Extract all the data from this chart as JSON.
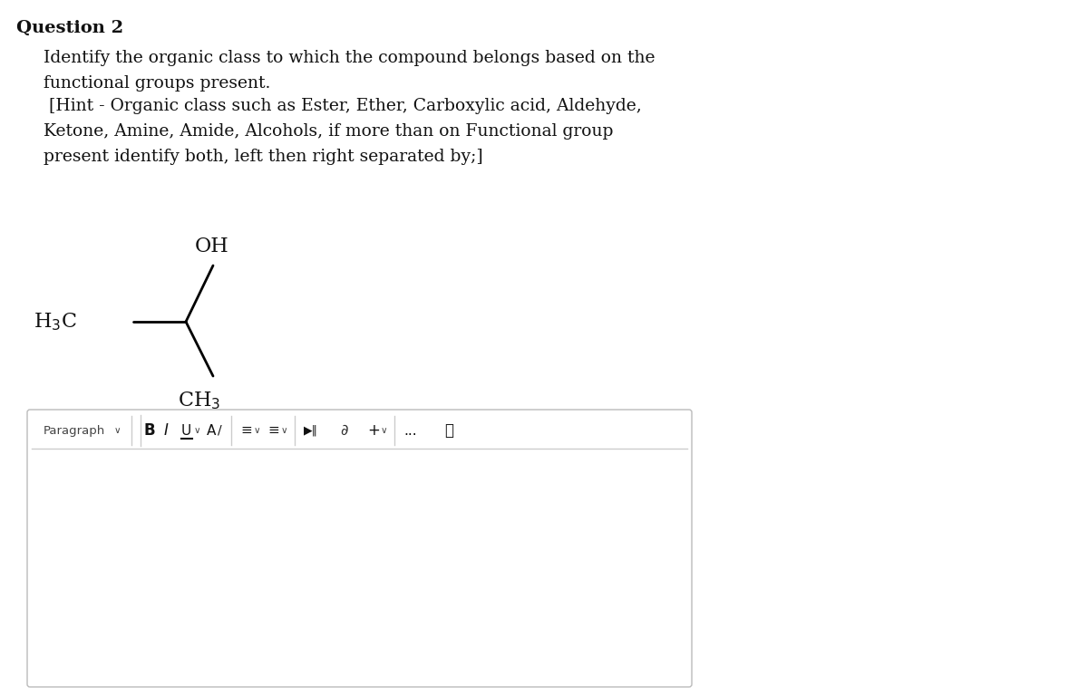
{
  "bg_color": "#ffffff",
  "question_label": "Question 2",
  "body_lines": [
    "Identify the organic class to which the compound belongs based on the",
    "functional groups present.",
    " [Hint - Organic class such as Ester, Ether, Carboxylic acid, Aldehyde,",
    "Ketone, Amine, Amide, Alcohols, if more than on Functional group",
    "present identify both, left then right separated by;]"
  ],
  "text_color": "#111111",
  "mol_label_OH": "OH",
  "mol_label_H3C": "H₃C",
  "mol_label_CH3": "CH₃",
  "toolbar_text": "Paragraph"
}
